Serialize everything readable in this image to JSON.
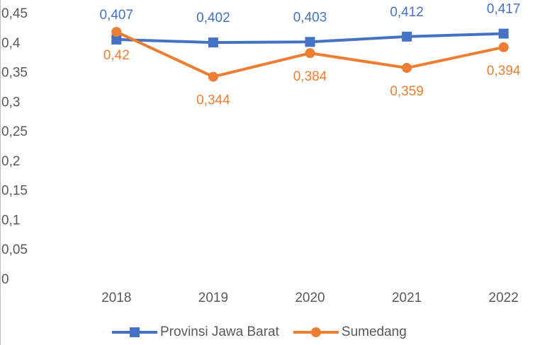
{
  "chart_data": {
    "type": "line",
    "categories": [
      "2018",
      "2019",
      "2020",
      "2021",
      "2022"
    ],
    "series": [
      {
        "name": "Provinsi Jawa Barat",
        "color": "#4472c4",
        "marker": "square",
        "label_position": "above",
        "values": [
          0.407,
          0.402,
          0.403,
          0.412,
          0.417
        ],
        "value_labels": [
          "0,407",
          "0,402",
          "0,403",
          "0,412",
          "0,417"
        ]
      },
      {
        "name": "Sumedang",
        "color": "#ed7d31",
        "marker": "circle",
        "label_position": "below",
        "values": [
          0.42,
          0.344,
          0.384,
          0.359,
          0.394
        ],
        "value_labels": [
          "0,42",
          "0,344",
          "0,384",
          "0,359",
          "0,394"
        ]
      }
    ],
    "ylim": [
      0,
      0.45
    ],
    "yticks": [
      0,
      {
        "value": 0.05,
        "label": "0,05"
      },
      {
        "value": 0.1,
        "label": "0,1"
      },
      {
        "value": 0.15,
        "label": "0,15"
      },
      {
        "value": 0.2,
        "label": "0,2"
      },
      {
        "value": 0.25,
        "label": "0,25"
      },
      {
        "value": 0.3,
        "label": "0,3"
      },
      {
        "value": 0.35,
        "label": "0,35"
      },
      {
        "value": 0.4,
        "label": "0,4"
      },
      {
        "value": 0.45,
        "label": "0,45"
      }
    ],
    "grid": false,
    "legend": "bottom"
  }
}
